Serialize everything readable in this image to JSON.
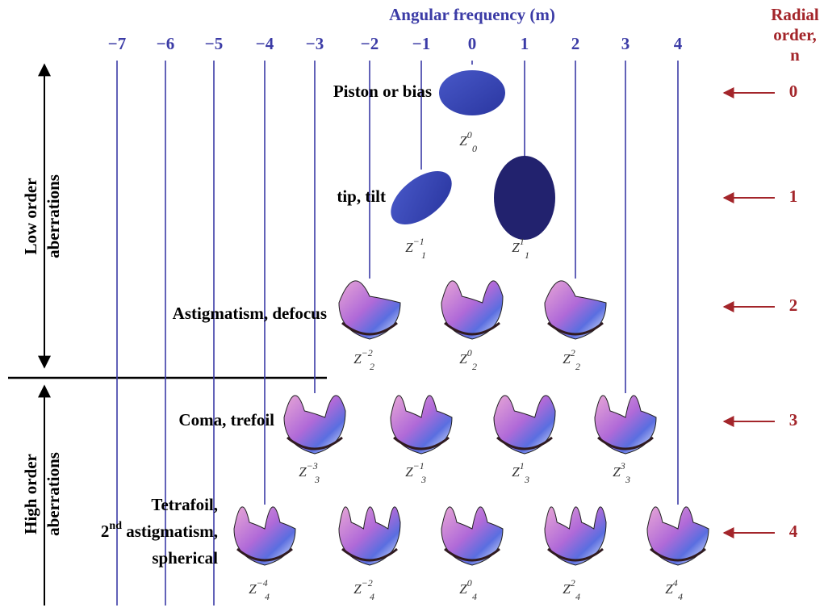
{
  "header": {
    "title": "Angular frequency (m)",
    "right_title": [
      "Radial",
      "order,",
      "n"
    ]
  },
  "m_labels": [
    "−7",
    "−6",
    "−5",
    "−4",
    "−3",
    "−2",
    "−1",
    "0",
    "1",
    "2",
    "3",
    "4"
  ],
  "side_labels": {
    "low": [
      "Low order",
      "aberrations"
    ],
    "high": [
      "High order",
      "aberrations"
    ]
  },
  "rows": [
    {
      "n": "0",
      "label": [
        "Piston or bias"
      ],
      "terms": [
        {
          "symbol": "Z",
          "n": "0",
          "m": "0"
        }
      ]
    },
    {
      "n": "1",
      "label": [
        "tip, tilt"
      ],
      "terms": [
        {
          "symbol": "Z",
          "n": "1",
          "m": "−1"
        },
        {
          "symbol": "Z",
          "n": "1",
          "m": "1"
        }
      ]
    },
    {
      "n": "2",
      "label": [
        "Astigmatism, defocus"
      ],
      "terms": [
        {
          "symbol": "Z",
          "n": "2",
          "m": "−2"
        },
        {
          "symbol": "Z",
          "n": "2",
          "m": "0"
        },
        {
          "symbol": "Z",
          "n": "2",
          "m": "2"
        }
      ]
    },
    {
      "n": "3",
      "label": [
        "Coma, trefoil"
      ],
      "terms": [
        {
          "symbol": "Z",
          "n": "3",
          "m": "−3"
        },
        {
          "symbol": "Z",
          "n": "3",
          "m": "−1"
        },
        {
          "symbol": "Z",
          "n": "3",
          "m": "1"
        },
        {
          "symbol": "Z",
          "n": "3",
          "m": "3"
        }
      ]
    },
    {
      "n": "4",
      "label": [
        "Tetrafoil,",
        {
          "text": "2",
          "sup": "nd",
          "rest": " astigmatism,"
        },
        "spherical"
      ],
      "terms": [
        {
          "symbol": "Z",
          "n": "4",
          "m": "−4"
        },
        {
          "symbol": "Z",
          "n": "4",
          "m": "−2"
        },
        {
          "symbol": "Z",
          "n": "4",
          "m": "0"
        },
        {
          "symbol": "Z",
          "n": "4",
          "m": "2"
        },
        {
          "symbol": "Z",
          "n": "4",
          "m": "4"
        }
      ]
    }
  ]
}
